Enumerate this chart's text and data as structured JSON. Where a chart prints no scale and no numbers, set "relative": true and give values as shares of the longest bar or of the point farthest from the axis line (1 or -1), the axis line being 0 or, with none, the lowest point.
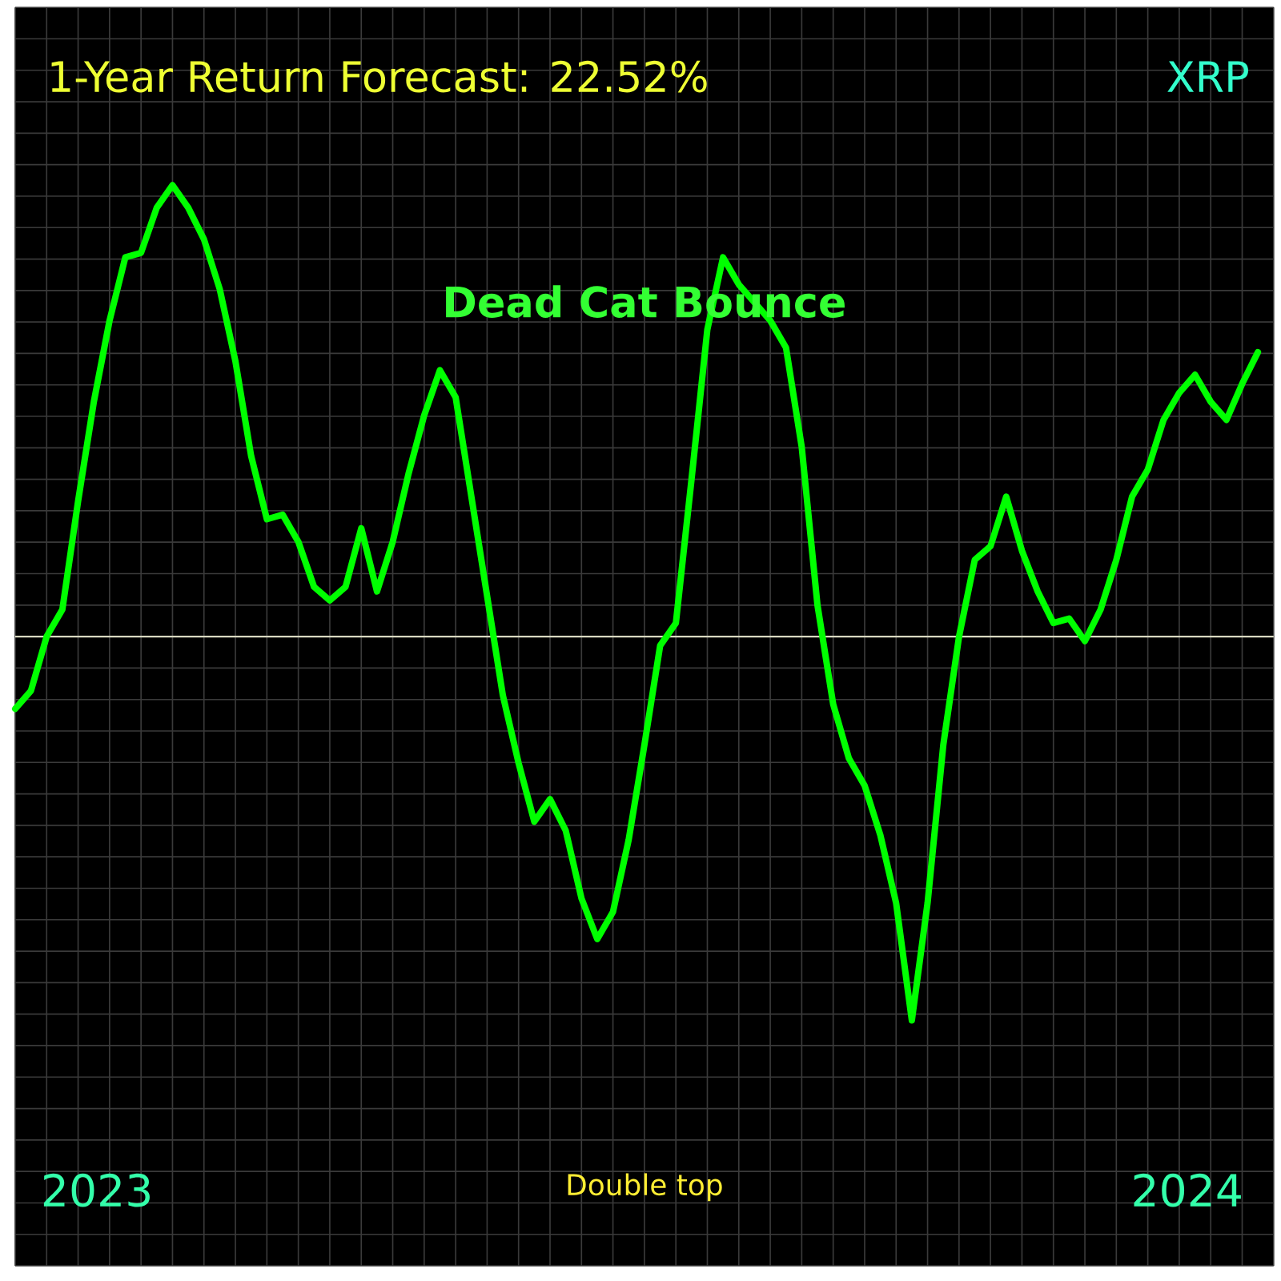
{
  "chart_data": {
    "type": "line",
    "title": "1-Year Return Forecast: 22.52%",
    "subtitle": "XRP",
    "annotations": [
      "Dead Cat Bounce",
      "Double top",
      "2023",
      "2024"
    ],
    "relative": true,
    "grid": true,
    "categories": [
      null,
      null,
      null,
      null,
      null,
      null,
      null,
      null,
      null,
      null,
      null,
      null,
      null,
      null,
      null,
      null,
      null,
      null,
      null,
      null,
      null,
      null,
      null,
      null,
      null,
      null,
      null,
      null,
      null,
      null,
      null,
      null,
      null,
      null,
      null,
      null,
      null,
      null,
      null,
      null,
      null,
      null,
      null,
      null,
      null,
      null,
      null,
      null,
      null,
      null,
      null,
      null,
      null,
      null,
      null,
      null,
      null,
      null,
      null,
      null,
      null,
      null,
      null,
      null,
      null,
      null,
      null,
      null,
      null,
      null,
      null,
      null,
      null,
      null,
      null,
      null,
      null,
      null,
      null,
      null
    ],
    "series": [
      {
        "color": "#00ff00",
        "values": [
          -0.16,
          -0.12,
          0,
          0.06,
          0.3,
          0.52,
          0.7,
          0.84,
          0.85,
          0.95,
          1,
          0.95,
          0.88,
          0.77,
          0.61,
          0.4,
          0.26,
          0.27,
          0.21,
          0.11,
          0.08,
          0.11,
          0.24,
          0.1,
          0.21,
          0.36,
          0.49,
          0.59,
          0.53,
          0.31,
          0.09,
          -0.13,
          -0.28,
          -0.41,
          -0.36,
          -0.43,
          -0.58,
          -0.67,
          -0.61,
          -0.45,
          -0.24,
          -0.02,
          0.03,
          0.35,
          0.68,
          0.84,
          0.78,
          0.74,
          0.7,
          0.64,
          0.42,
          0.07,
          -0.15,
          -0.27,
          -0.33,
          -0.44,
          -0.59,
          -0.85,
          -0.59,
          -0.24,
          0,
          0.17,
          0.2,
          0.31,
          0.19,
          0.1,
          0.03,
          0.04,
          -0.01,
          0.06,
          0.17,
          0.31,
          0.37,
          0.48,
          0.54,
          0.58,
          0.52,
          0.48,
          0.56,
          0.63
        ]
      }
    ]
  }
}
